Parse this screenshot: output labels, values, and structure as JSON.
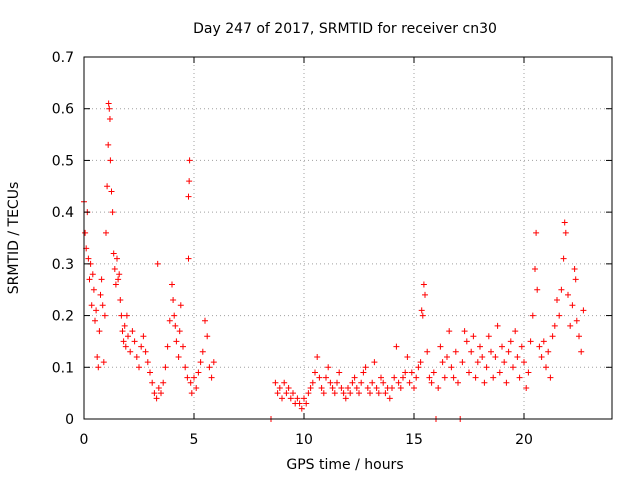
{
  "chart_data": {
    "type": "scatter",
    "title": "Day 247 of 2017, SRMTID for receiver cn30",
    "xlabel": "GPS time / hours",
    "ylabel": "SRMTID / TECUs",
    "xlim": [
      0,
      24
    ],
    "ylim": [
      0,
      0.7
    ],
    "xticks": [
      0,
      5,
      10,
      15,
      20
    ],
    "yticks": [
      0,
      0.1,
      0.2,
      0.3,
      0.4,
      0.5,
      0.6,
      0.7
    ],
    "xtick_labels": [
      "0",
      "5",
      "10",
      "15",
      "20"
    ],
    "ytick_labels": [
      "0",
      "0.1",
      "0.2",
      "0.3",
      "0.4",
      "0.5",
      "0.6",
      "0.7"
    ],
    "grid": true,
    "marker": "+",
    "series": [
      {
        "name": "SRMTID",
        "color": "#ff0000",
        "points": [
          [
            0.0,
            0.42
          ],
          [
            0.05,
            0.36
          ],
          [
            0.1,
            0.33
          ],
          [
            0.15,
            0.4
          ],
          [
            0.2,
            0.31
          ],
          [
            0.25,
            0.27
          ],
          [
            0.3,
            0.3
          ],
          [
            0.35,
            0.22
          ],
          [
            0.4,
            0.28
          ],
          [
            0.45,
            0.25
          ],
          [
            0.5,
            0.19
          ],
          [
            0.55,
            0.21
          ],
          [
            0.6,
            0.12
          ],
          [
            0.65,
            0.1
          ],
          [
            0.7,
            0.17
          ],
          [
            0.75,
            0.24
          ],
          [
            0.8,
            0.27
          ],
          [
            0.85,
            0.22
          ],
          [
            0.9,
            0.11
          ],
          [
            0.95,
            0.2
          ],
          [
            1.0,
            0.36
          ],
          [
            1.05,
            0.45
          ],
          [
            1.1,
            0.53
          ],
          [
            1.12,
            0.61
          ],
          [
            1.15,
            0.6
          ],
          [
            1.18,
            0.58
          ],
          [
            1.2,
            0.5
          ],
          [
            1.25,
            0.44
          ],
          [
            1.3,
            0.4
          ],
          [
            1.35,
            0.32
          ],
          [
            1.4,
            0.29
          ],
          [
            1.45,
            0.26
          ],
          [
            1.5,
            0.31
          ],
          [
            1.55,
            0.27
          ],
          [
            1.6,
            0.28
          ],
          [
            1.65,
            0.23
          ],
          [
            1.7,
            0.2
          ],
          [
            1.75,
            0.17
          ],
          [
            1.8,
            0.15
          ],
          [
            1.85,
            0.18
          ],
          [
            1.9,
            0.14
          ],
          [
            1.95,
            0.2
          ],
          [
            2.0,
            0.16
          ],
          [
            2.1,
            0.13
          ],
          [
            2.2,
            0.17
          ],
          [
            2.3,
            0.15
          ],
          [
            2.4,
            0.12
          ],
          [
            2.5,
            0.1
          ],
          [
            2.6,
            0.14
          ],
          [
            2.7,
            0.16
          ],
          [
            2.8,
            0.13
          ],
          [
            2.9,
            0.11
          ],
          [
            3.0,
            0.09
          ],
          [
            3.1,
            0.07
          ],
          [
            3.2,
            0.05
          ],
          [
            3.3,
            0.04
          ],
          [
            3.35,
            0.3
          ],
          [
            3.4,
            0.06
          ],
          [
            3.5,
            0.05
          ],
          [
            3.6,
            0.07
          ],
          [
            3.7,
            0.1
          ],
          [
            3.8,
            0.14
          ],
          [
            3.9,
            0.19
          ],
          [
            4.0,
            0.26
          ],
          [
            4.05,
            0.23
          ],
          [
            4.1,
            0.2
          ],
          [
            4.15,
            0.18
          ],
          [
            4.2,
            0.15
          ],
          [
            4.3,
            0.12
          ],
          [
            4.35,
            0.17
          ],
          [
            4.4,
            0.22
          ],
          [
            4.5,
            0.14
          ],
          [
            4.6,
            0.1
          ],
          [
            4.7,
            0.08
          ],
          [
            4.75,
            0.31
          ],
          [
            4.75,
            0.43
          ],
          [
            4.78,
            0.46
          ],
          [
            4.8,
            0.5
          ],
          [
            4.85,
            0.07
          ],
          [
            4.9,
            0.05
          ],
          [
            5.0,
            0.08
          ],
          [
            5.1,
            0.06
          ],
          [
            5.2,
            0.09
          ],
          [
            5.3,
            0.11
          ],
          [
            5.4,
            0.13
          ],
          [
            5.5,
            0.19
          ],
          [
            5.6,
            0.16
          ],
          [
            5.7,
            0.1
          ],
          [
            5.8,
            0.08
          ],
          [
            5.9,
            0.11
          ],
          [
            8.5,
            0.0
          ],
          [
            8.7,
            0.07
          ],
          [
            8.8,
            0.05
          ],
          [
            8.9,
            0.06
          ],
          [
            9.0,
            0.04
          ],
          [
            9.1,
            0.07
          ],
          [
            9.2,
            0.05
          ],
          [
            9.3,
            0.06
          ],
          [
            9.4,
            0.04
          ],
          [
            9.5,
            0.05
          ],
          [
            9.6,
            0.03
          ],
          [
            9.7,
            0.04
          ],
          [
            9.8,
            0.03
          ],
          [
            9.9,
            0.02
          ],
          [
            10.0,
            0.04
          ],
          [
            10.1,
            0.03
          ],
          [
            10.2,
            0.05
          ],
          [
            10.3,
            0.06
          ],
          [
            10.4,
            0.07
          ],
          [
            10.5,
            0.09
          ],
          [
            10.6,
            0.12
          ],
          [
            10.7,
            0.08
          ],
          [
            10.8,
            0.06
          ],
          [
            10.9,
            0.05
          ],
          [
            11.0,
            0.08
          ],
          [
            11.1,
            0.1
          ],
          [
            11.2,
            0.07
          ],
          [
            11.3,
            0.06
          ],
          [
            11.4,
            0.05
          ],
          [
            11.5,
            0.07
          ],
          [
            11.6,
            0.09
          ],
          [
            11.7,
            0.06
          ],
          [
            11.8,
            0.05
          ],
          [
            11.9,
            0.04
          ],
          [
            12.0,
            0.06
          ],
          [
            12.1,
            0.05
          ],
          [
            12.2,
            0.07
          ],
          [
            12.3,
            0.08
          ],
          [
            12.4,
            0.06
          ],
          [
            12.5,
            0.05
          ],
          [
            12.6,
            0.07
          ],
          [
            12.7,
            0.09
          ],
          [
            12.8,
            0.1
          ],
          [
            12.9,
            0.06
          ],
          [
            13.0,
            0.05
          ],
          [
            13.1,
            0.07
          ],
          [
            13.2,
            0.11
          ],
          [
            13.3,
            0.06
          ],
          [
            13.4,
            0.05
          ],
          [
            13.5,
            0.08
          ],
          [
            13.6,
            0.07
          ],
          [
            13.7,
            0.05
          ],
          [
            13.8,
            0.06
          ],
          [
            13.9,
            0.04
          ],
          [
            14.0,
            0.06
          ],
          [
            14.1,
            0.08
          ],
          [
            14.2,
            0.14
          ],
          [
            14.3,
            0.07
          ],
          [
            14.4,
            0.06
          ],
          [
            14.5,
            0.08
          ],
          [
            14.6,
            0.09
          ],
          [
            14.7,
            0.12
          ],
          [
            14.8,
            0.07
          ],
          [
            14.9,
            0.09
          ],
          [
            15.0,
            0.06
          ],
          [
            15.1,
            0.08
          ],
          [
            15.2,
            0.1
          ],
          [
            15.3,
            0.11
          ],
          [
            15.35,
            0.21
          ],
          [
            15.4,
            0.2
          ],
          [
            15.45,
            0.26
          ],
          [
            15.5,
            0.24
          ],
          [
            15.6,
            0.13
          ],
          [
            15.7,
            0.08
          ],
          [
            15.8,
            0.07
          ],
          [
            15.9,
            0.09
          ],
          [
            16.0,
            0.0
          ],
          [
            16.1,
            0.06
          ],
          [
            16.2,
            0.14
          ],
          [
            16.3,
            0.11
          ],
          [
            16.4,
            0.08
          ],
          [
            16.5,
            0.12
          ],
          [
            16.6,
            0.17
          ],
          [
            16.7,
            0.1
          ],
          [
            16.8,
            0.08
          ],
          [
            16.9,
            0.13
          ],
          [
            17.0,
            0.07
          ],
          [
            17.1,
            0.0
          ],
          [
            17.2,
            0.11
          ],
          [
            17.3,
            0.17
          ],
          [
            17.4,
            0.15
          ],
          [
            17.5,
            0.09
          ],
          [
            17.6,
            0.13
          ],
          [
            17.7,
            0.16
          ],
          [
            17.8,
            0.08
          ],
          [
            17.9,
            0.11
          ],
          [
            18.0,
            0.14
          ],
          [
            18.1,
            0.12
          ],
          [
            18.2,
            0.07
          ],
          [
            18.3,
            0.1
          ],
          [
            18.4,
            0.16
          ],
          [
            18.5,
            0.13
          ],
          [
            18.6,
            0.08
          ],
          [
            18.7,
            0.12
          ],
          [
            18.8,
            0.18
          ],
          [
            18.9,
            0.09
          ],
          [
            19.0,
            0.14
          ],
          [
            19.1,
            0.11
          ],
          [
            19.2,
            0.07
          ],
          [
            19.3,
            0.13
          ],
          [
            19.4,
            0.15
          ],
          [
            19.5,
            0.1
          ],
          [
            19.6,
            0.17
          ],
          [
            19.7,
            0.12
          ],
          [
            19.8,
            0.08
          ],
          [
            19.9,
            0.14
          ],
          [
            20.0,
            0.11
          ],
          [
            20.1,
            0.06
          ],
          [
            20.2,
            0.09
          ],
          [
            20.3,
            0.15
          ],
          [
            20.4,
            0.2
          ],
          [
            20.5,
            0.29
          ],
          [
            20.55,
            0.36
          ],
          [
            20.6,
            0.25
          ],
          [
            20.7,
            0.14
          ],
          [
            20.8,
            0.12
          ],
          [
            20.9,
            0.15
          ],
          [
            21.0,
            0.1
          ],
          [
            21.1,
            0.13
          ],
          [
            21.2,
            0.08
          ],
          [
            21.3,
            0.16
          ],
          [
            21.4,
            0.18
          ],
          [
            21.5,
            0.23
          ],
          [
            21.6,
            0.2
          ],
          [
            21.7,
            0.25
          ],
          [
            21.8,
            0.31
          ],
          [
            21.85,
            0.38
          ],
          [
            21.9,
            0.36
          ],
          [
            22.0,
            0.24
          ],
          [
            22.1,
            0.18
          ],
          [
            22.2,
            0.22
          ],
          [
            22.3,
            0.29
          ],
          [
            22.35,
            0.27
          ],
          [
            22.4,
            0.19
          ],
          [
            22.5,
            0.16
          ],
          [
            22.6,
            0.13
          ],
          [
            22.7,
            0.21
          ]
        ]
      }
    ]
  }
}
